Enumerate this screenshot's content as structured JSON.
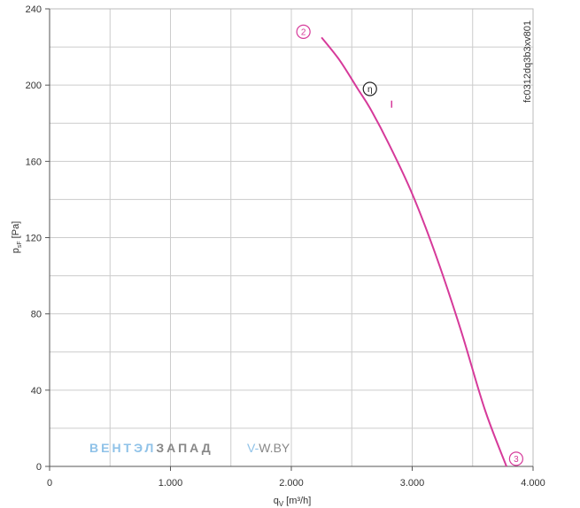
{
  "chart_data": {
    "type": "line",
    "xlabel": "q",
    "xlabel_sub": "V",
    "xlabel_unit": "[m³/h]",
    "ylabel": "p",
    "ylabel_sub": "sF",
    "ylabel_unit": "[Pa]",
    "xlim": [
      0,
      4000
    ],
    "ylim": [
      0,
      240
    ],
    "x_ticks": [
      0,
      1000,
      2000,
      3000,
      4000
    ],
    "x_tick_labels": [
      "0",
      "1.000",
      "2.000",
      "3.000",
      "4.000"
    ],
    "y_ticks": [
      0,
      40,
      80,
      120,
      160,
      200,
      240
    ],
    "y_tick_labels": [
      "0",
      "40",
      "80",
      "120",
      "160",
      "200",
      "240"
    ],
    "grid": true,
    "side_label": "fc0312dq3b3xv801",
    "series": [
      {
        "color": "#d63a9a",
        "x": [
          2250,
          2400,
          2550,
          2650,
          2800,
          3000,
          3200,
          3400,
          3600,
          3780
        ],
        "y": [
          225,
          213,
          198,
          188,
          170,
          143,
          110,
          72,
          30,
          0
        ]
      }
    ],
    "markers": [
      {
        "label": "2",
        "x": 2100,
        "y": 228,
        "color": "#d63a9a"
      },
      {
        "label": "η",
        "x": 2650,
        "y": 198,
        "color": "#222222"
      },
      {
        "label": "3",
        "x": 3860,
        "y": 4,
        "color": "#d63a9a"
      }
    ],
    "tick_mark": {
      "x": 2830,
      "y": 190,
      "color": "#d63a9a"
    }
  },
  "watermark": {
    "part1": "ВЕНТЭЛ",
    "part2": "ЗАПАД",
    "part3": "V-",
    "part4": "W.BY",
    "color1": "#8fc2e8",
    "color2": "#888888"
  }
}
